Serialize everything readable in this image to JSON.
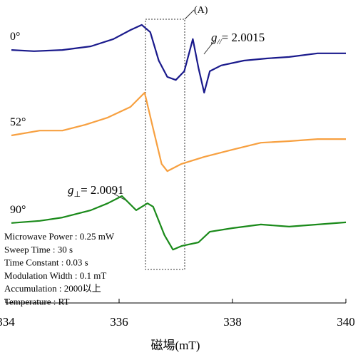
{
  "chart_data": {
    "type": "line",
    "xlabel": "磁場(mT)",
    "xlim": [
      334,
      340
    ],
    "xticks": [
      334,
      336,
      338,
      340
    ],
    "ylim": [
      0,
      100
    ],
    "series": [
      {
        "name": "0°",
        "color": "#1a1a8c",
        "x": [
          334.1,
          334.5,
          335.0,
          335.5,
          335.9,
          336.2,
          336.4,
          336.55,
          336.7,
          336.85,
          337.0,
          337.15,
          337.3,
          337.4,
          337.5,
          337.6,
          337.8,
          338.2,
          338.6,
          339.0,
          339.5,
          340.0
        ],
        "values": [
          83.5,
          83.1,
          83.5,
          84.7,
          87.1,
          90.1,
          91.8,
          89.4,
          80.0,
          74.6,
          73.6,
          76.5,
          87.1,
          77.6,
          69.4,
          76.5,
          78.4,
          80.0,
          80.7,
          81.2,
          82.4,
          82.4
        ]
      },
      {
        "name": "52°",
        "color": "#f7a040",
        "x": [
          334.1,
          334.6,
          335.0,
          335.4,
          335.8,
          336.2,
          336.45,
          336.6,
          336.75,
          336.85,
          337.1,
          337.5,
          338.0,
          338.5,
          339.0,
          339.5,
          340.0
        ],
        "values": [
          55.3,
          56.9,
          56.9,
          58.8,
          61.2,
          64.7,
          69.4,
          57.6,
          45.9,
          43.5,
          45.9,
          48.2,
          50.6,
          52.9,
          53.4,
          54.1,
          54.1
        ]
      },
      {
        "name": "90°",
        "color": "#1a8a1a",
        "x": [
          334.1,
          334.6,
          335.0,
          335.5,
          335.8,
          336.05,
          336.3,
          336.5,
          336.6,
          336.8,
          336.95,
          337.1,
          337.4,
          337.6,
          338.0,
          338.5,
          339.0,
          339.5,
          340.0
        ],
        "values": [
          26.4,
          27.1,
          28.2,
          30.6,
          32.9,
          35.3,
          30.6,
          32.9,
          31.8,
          22.4,
          17.6,
          18.8,
          20.0,
          23.5,
          24.7,
          25.9,
          25.2,
          25.9,
          26.6
        ]
      }
    ],
    "annotations": {
      "box_label": "(A)",
      "g_parallel": {
        "symbol": "g",
        "subscript": "//",
        "text": "= 2.0015"
      },
      "g_perp": {
        "symbol": "g",
        "subscript": "⊥",
        "text": "= 2.0091"
      },
      "conditions": [
        "Microwave Power : 0.25 mW",
        "Sweep Time : 30 s",
        "Time Constant : 0.03 s",
        "Modulation Width : 0.1 mT",
        "Accumulation : 2000以上",
        "Temperature : RT"
      ]
    }
  }
}
